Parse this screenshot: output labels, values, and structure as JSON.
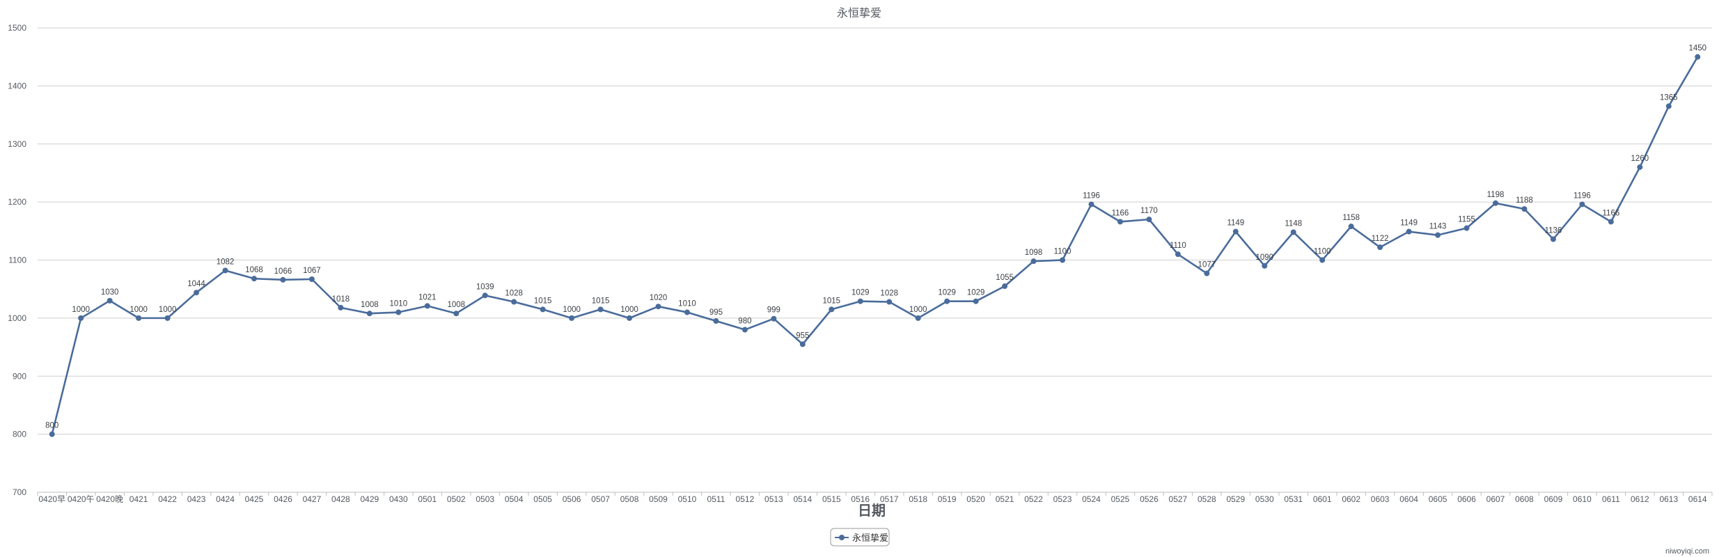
{
  "chart_data": {
    "type": "line",
    "title": "永恒挚爱",
    "xlabel": "日期",
    "ylabel": "",
    "ylim": [
      700,
      1500
    ],
    "yticks": [
      700,
      800,
      900,
      1000,
      1100,
      1200,
      1300,
      1400,
      1500
    ],
    "grid": true,
    "legend_position": "bottom-center",
    "color": "#4a6c9b",
    "categories": [
      "0420早",
      "0420午",
      "0420晚",
      "0421",
      "0422",
      "0423",
      "0424",
      "0425",
      "0426",
      "0427",
      "0428",
      "0429",
      "0430",
      "0501",
      "0502",
      "0503",
      "0504",
      "0505",
      "0506",
      "0507",
      "0508",
      "0509",
      "0510",
      "0511",
      "0512",
      "0513",
      "0514",
      "0515",
      "0516",
      "0517",
      "0518",
      "0519",
      "0520",
      "0521",
      "0522",
      "0523",
      "0524",
      "0525",
      "0526",
      "0527",
      "0528",
      "0529",
      "0530",
      "0531",
      "0601",
      "0602",
      "0603",
      "0604",
      "0605",
      "0606",
      "0607",
      "0608",
      "0609",
      "0610",
      "0611",
      "0612",
      "0613",
      "0614"
    ],
    "series": [
      {
        "name": "永恒挚爱",
        "values": [
          800,
          1000,
          1030,
          1000,
          1000,
          1044,
          1082,
          1068,
          1066,
          1067,
          1018,
          1008,
          1010,
          1021,
          1008,
          1039,
          1028,
          1015,
          1000,
          1015,
          1000,
          1020,
          1010,
          995,
          980,
          999,
          955,
          1015,
          1029,
          1028,
          1000,
          1029,
          1029,
          1055,
          1098,
          1100,
          1196,
          1166,
          1170,
          1110,
          1077,
          1149,
          1090,
          1148,
          1100,
          1158,
          1122,
          1149,
          1143,
          1155,
          1198,
          1188,
          1136,
          1196,
          1166,
          1260,
          1365,
          1450
        ]
      }
    ]
  },
  "watermark": "niwoyiqi.com"
}
